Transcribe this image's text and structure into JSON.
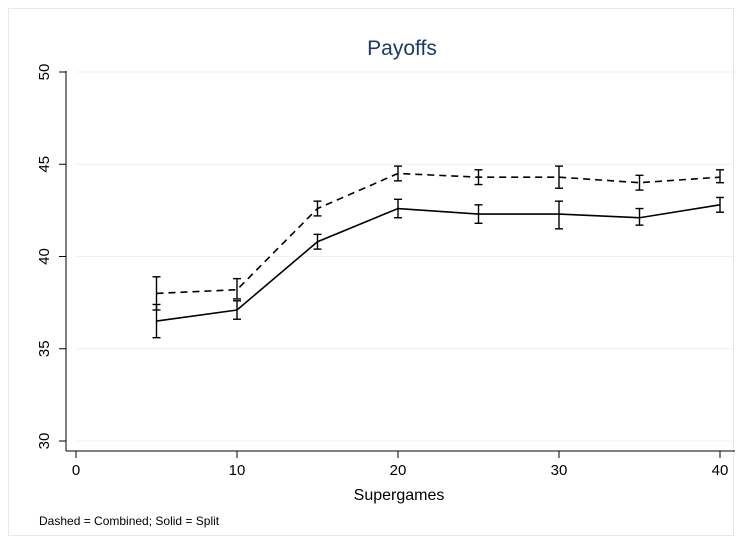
{
  "chart_data": {
    "type": "line",
    "title": "Payoffs",
    "xlabel": "Supergames",
    "ylabel": "",
    "note": "Dashed = Combined; Solid = Split",
    "xlim": [
      0,
      40
    ],
    "ylim": [
      30,
      50
    ],
    "xticks": [
      0,
      10,
      20,
      30,
      40
    ],
    "yticks": [
      30,
      35,
      40,
      45,
      50
    ],
    "grid": "horizontal",
    "x": [
      5,
      10,
      15,
      20,
      25,
      30,
      35,
      40
    ],
    "series": [
      {
        "style": "dashed",
        "values": [
          38.0,
          38.2,
          42.6,
          44.5,
          44.3,
          44.3,
          44.0,
          44.3
        ],
        "lower": [
          37.1,
          37.7,
          42.2,
          44.1,
          43.9,
          43.7,
          43.6,
          44.0
        ],
        "upper": [
          38.9,
          38.8,
          43.0,
          44.9,
          44.7,
          44.9,
          44.4,
          44.7
        ]
      },
      {
        "style": "solid",
        "values": [
          36.5,
          37.1,
          40.8,
          42.6,
          42.3,
          42.3,
          42.1,
          42.8
        ],
        "lower": [
          35.6,
          36.6,
          40.4,
          42.1,
          41.8,
          41.5,
          41.7,
          42.4
        ],
        "upper": [
          37.4,
          37.6,
          41.2,
          43.1,
          42.8,
          43.0,
          42.6,
          43.2
        ]
      }
    ],
    "colors": {
      "line": "#000000",
      "grid": "#eaf2f3",
      "title": "#1a3a6b",
      "axis": "#000000"
    }
  }
}
